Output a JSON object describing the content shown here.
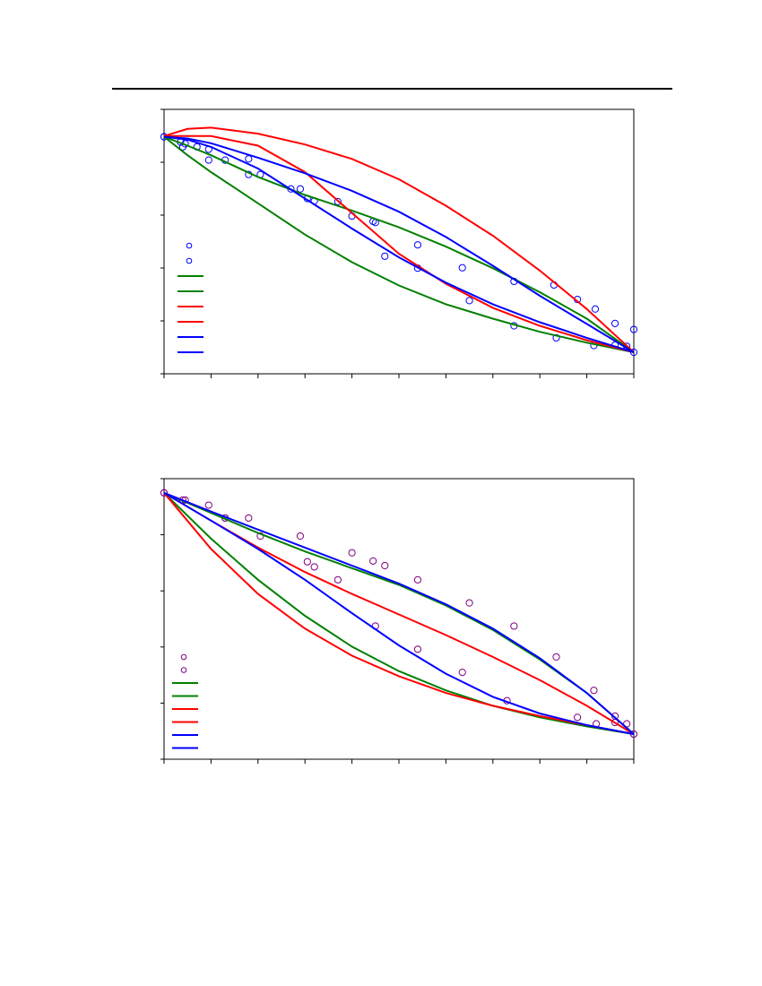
{
  "colors": {
    "green": "#008000",
    "red": "#ff0000",
    "blue": "#0000ff",
    "purple": "#800080",
    "frame": "#000000"
  },
  "chart_data": [
    {
      "type": "scatter",
      "title": "",
      "xlabel": "",
      "ylabel": "",
      "xlim": [
        0,
        1
      ],
      "ylim": [
        0,
        1
      ],
      "grid": false,
      "legend_placement": "middle-left",
      "series": [
        {
          "kind": "points",
          "color": "blue",
          "x": [
            0,
            0.035,
            0.045,
            0.07,
            0.095,
            0.13,
            0.18,
            0.205,
            0.27,
            0.305,
            0.32,
            0.37,
            0.45,
            0.54,
            0.635,
            0.745,
            0.83,
            0.88,
            0.918,
            0.96,
            1.0
          ],
          "y": [
            0.897,
            0.875,
            0.868,
            0.855,
            0.845,
            0.8,
            0.805,
            0.74,
            0.68,
            0.64,
            0.63,
            0.627,
            0.54,
            0.447,
            0.352,
            0.295,
            0.28,
            0.22,
            0.18,
            0.12,
            0.095
          ]
        },
        {
          "kind": "points",
          "color": "blue",
          "x": [
            0,
            0.04,
            0.095,
            0.18,
            0.29,
            0.4,
            0.445,
            0.47,
            0.54,
            0.65,
            0.745,
            0.835,
            0.915,
            0.96,
            0.985,
            1.0
          ],
          "y": [
            0.897,
            0.855,
            0.8,
            0.74,
            0.68,
            0.567,
            0.545,
            0.4,
            0.35,
            0.215,
            0.11,
            0.06,
            0.028,
            0.03,
            0.025,
            0.0
          ]
        },
        {
          "kind": "line",
          "color": "green",
          "x": [
            0,
            0.05,
            0.1,
            0.15,
            0.2,
            0.3,
            0.4,
            0.5,
            0.6,
            0.7,
            0.8,
            0.9,
            1.0
          ],
          "y": [
            0.897,
            0.86,
            0.82,
            0.775,
            0.73,
            0.655,
            0.59,
            0.52,
            0.44,
            0.35,
            0.25,
            0.14,
            0.0
          ]
        },
        {
          "kind": "line",
          "color": "green",
          "x": [
            0,
            0.05,
            0.1,
            0.2,
            0.3,
            0.4,
            0.5,
            0.6,
            0.7,
            0.8,
            0.9,
            1.0
          ],
          "y": [
            0.897,
            0.82,
            0.75,
            0.62,
            0.49,
            0.375,
            0.278,
            0.2,
            0.14,
            0.085,
            0.04,
            0.0
          ]
        },
        {
          "kind": "line",
          "color": "red",
          "x": [
            0,
            0.05,
            0.1,
            0.2,
            0.3,
            0.4,
            0.5,
            0.6,
            0.7,
            0.8,
            0.9,
            1.0
          ],
          "y": [
            0.9,
            0.93,
            0.935,
            0.91,
            0.865,
            0.805,
            0.72,
            0.61,
            0.485,
            0.34,
            0.18,
            0.0
          ]
        },
        {
          "kind": "line",
          "color": "red",
          "x": [
            0,
            0.1,
            0.2,
            0.3,
            0.4,
            0.5,
            0.6,
            0.7,
            0.8,
            0.9,
            1.0
          ],
          "y": [
            0.9,
            0.9,
            0.86,
            0.75,
            0.58,
            0.41,
            0.285,
            0.185,
            0.11,
            0.05,
            0.0
          ]
        },
        {
          "kind": "line",
          "color": "blue",
          "x": [
            0,
            0.05,
            0.1,
            0.2,
            0.3,
            0.4,
            0.5,
            0.6,
            0.7,
            0.8,
            0.9,
            1.0
          ],
          "y": [
            0.897,
            0.89,
            0.87,
            0.81,
            0.745,
            0.672,
            0.585,
            0.48,
            0.36,
            0.235,
            0.118,
            0.0
          ]
        },
        {
          "kind": "line",
          "color": "blue",
          "x": [
            0,
            0.05,
            0.1,
            0.2,
            0.3,
            0.4,
            0.5,
            0.6,
            0.7,
            0.8,
            0.9,
            1.0
          ],
          "y": [
            0.897,
            0.885,
            0.855,
            0.765,
            0.64,
            0.515,
            0.395,
            0.29,
            0.2,
            0.125,
            0.06,
            0.0
          ]
        }
      ],
      "legend": [
        "blue-point",
        "blue-point",
        "green-line",
        "green-line",
        "red-line",
        "red-line",
        "blue-line",
        "blue-line"
      ]
    },
    {
      "type": "scatter",
      "title": "",
      "xlabel": "",
      "ylabel": "",
      "xlim": [
        0,
        1
      ],
      "ylim": [
        0,
        1
      ],
      "grid": false,
      "legend_placement": "bottom-left",
      "series": [
        {
          "kind": "points",
          "color": "purple",
          "x": [
            0,
            0.045,
            0.095,
            0.13,
            0.18,
            0.29,
            0.4,
            0.445,
            0.47,
            0.54,
            0.65,
            0.745,
            0.835,
            0.915,
            0.96,
            1.0
          ],
          "y": [
            0.938,
            0.91,
            0.89,
            0.84,
            0.84,
            0.77,
            0.705,
            0.673,
            0.655,
            0.6,
            0.51,
            0.42,
            0.3,
            0.17,
            0.07,
            0.0
          ]
        },
        {
          "kind": "points",
          "color": "purple",
          "x": [
            0,
            0.04,
            0.13,
            0.205,
            0.305,
            0.32,
            0.37,
            0.45,
            0.54,
            0.635,
            0.73,
            0.88,
            0.92,
            0.96,
            0.985,
            1.0
          ],
          "y": [
            0.938,
            0.91,
            0.84,
            0.77,
            0.67,
            0.65,
            0.6,
            0.42,
            0.33,
            0.24,
            0.13,
            0.065,
            0.04,
            0.045,
            0.04,
            0.0
          ]
        },
        {
          "kind": "line",
          "color": "green",
          "x": [
            0,
            0.1,
            0.2,
            0.3,
            0.4,
            0.5,
            0.6,
            0.7,
            0.8,
            0.9,
            1.0
          ],
          "y": [
            0.938,
            0.86,
            0.782,
            0.71,
            0.645,
            0.58,
            0.5,
            0.405,
            0.29,
            0.16,
            0.0
          ]
        },
        {
          "kind": "line",
          "color": "green",
          "x": [
            0,
            0.1,
            0.2,
            0.3,
            0.4,
            0.5,
            0.6,
            0.7,
            0.8,
            0.9,
            1.0
          ],
          "y": [
            0.938,
            0.76,
            0.6,
            0.46,
            0.34,
            0.245,
            0.17,
            0.11,
            0.065,
            0.03,
            0.0
          ]
        },
        {
          "kind": "line",
          "color": "red",
          "x": [
            0,
            0.1,
            0.2,
            0.3,
            0.4,
            0.5,
            0.6,
            0.7,
            0.8,
            0.9,
            1.0
          ],
          "y": [
            0.938,
            0.83,
            0.725,
            0.63,
            0.545,
            0.465,
            0.385,
            0.3,
            0.21,
            0.11,
            0.0
          ]
        },
        {
          "kind": "line",
          "color": "red",
          "x": [
            0,
            0.1,
            0.2,
            0.3,
            0.4,
            0.5,
            0.6,
            0.7,
            0.8,
            0.9,
            1.0
          ],
          "y": [
            0.938,
            0.72,
            0.545,
            0.41,
            0.305,
            0.225,
            0.16,
            0.11,
            0.07,
            0.035,
            0.0
          ]
        },
        {
          "kind": "line",
          "color": "blue",
          "x": [
            0,
            0.1,
            0.2,
            0.3,
            0.4,
            0.5,
            0.6,
            0.7,
            0.8,
            0.9,
            1.0
          ],
          "y": [
            0.938,
            0.865,
            0.795,
            0.725,
            0.655,
            0.585,
            0.505,
            0.41,
            0.295,
            0.16,
            0.0
          ]
        },
        {
          "kind": "line",
          "color": "blue",
          "x": [
            0,
            0.1,
            0.2,
            0.3,
            0.4,
            0.5,
            0.6,
            0.7,
            0.8,
            0.9,
            1.0
          ],
          "y": [
            0.938,
            0.83,
            0.72,
            0.6,
            0.47,
            0.345,
            0.235,
            0.145,
            0.08,
            0.035,
            0.0
          ]
        }
      ],
      "legend": [
        "purple-point",
        "purple-point",
        "green-line",
        "green-line",
        "red-line",
        "red-line",
        "blue-line",
        "blue-line"
      ]
    }
  ]
}
